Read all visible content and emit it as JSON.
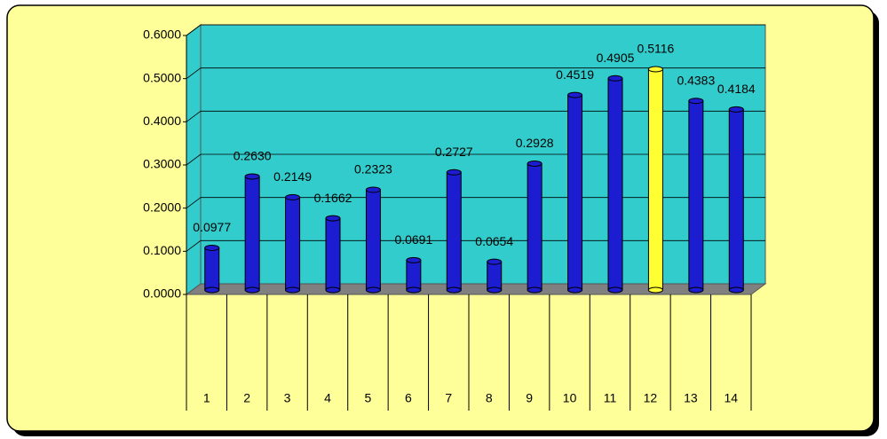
{
  "chart_data": {
    "type": "bar",
    "categories": [
      "1",
      "2",
      "3",
      "4",
      "5",
      "6",
      "7",
      "8",
      "9",
      "10",
      "11",
      "12",
      "13",
      "14"
    ],
    "values": [
      0.0977,
      0.263,
      0.2149,
      0.1662,
      0.2323,
      0.0691,
      0.2727,
      0.0654,
      0.2928,
      0.4519,
      0.4905,
      0.5116,
      0.4383,
      0.4184
    ],
    "value_labels": [
      "0.0977",
      "0.2630",
      "0.2149",
      "0.1662",
      "0.2323",
      "0.0691",
      "0.2727",
      "0.0654",
      "0.2928",
      "0.4519",
      "0.4905",
      "0.5116",
      "0.4383",
      "0.4184"
    ],
    "colors": [
      "#1c1cd0",
      "#1c1cd0",
      "#1c1cd0",
      "#1c1cd0",
      "#1c1cd0",
      "#1c1cd0",
      "#1c1cd0",
      "#1c1cd0",
      "#1c1cd0",
      "#1c1cd0",
      "#1c1cd0",
      "#ffff33",
      "#1c1cd0",
      "#1c1cd0"
    ],
    "ylim": [
      0,
      0.6
    ],
    "yticks": [
      {
        "value": 0,
        "label": "0.0000"
      },
      {
        "value": 0.1,
        "label": "0.1000"
      },
      {
        "value": 0.2,
        "label": "0.2000"
      },
      {
        "value": 0.3,
        "label": "0.3000"
      },
      {
        "value": 0.4,
        "label": "0.4000"
      },
      {
        "value": 0.5,
        "label": "0.5000"
      },
      {
        "value": 0.6,
        "label": "0.6000"
      }
    ],
    "grid": true
  }
}
